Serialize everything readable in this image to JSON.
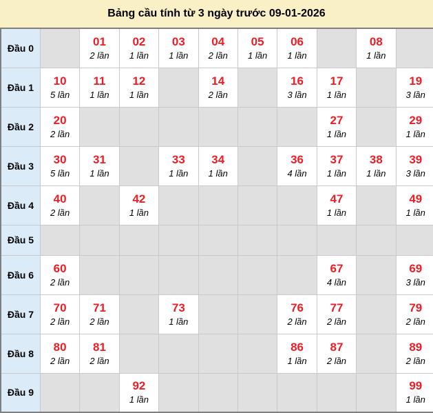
{
  "title": "Bảng cầu tính từ 3 ngày trước 09-01-2026",
  "count_unit": "lần",
  "colors": {
    "title_bg": "#FAF0C6",
    "row_header_bg": "#DCEBF8",
    "empty_cell_bg": "#E0E0E0",
    "filled_cell_bg": "#FFFFFF",
    "number_red": "#EE1C25",
    "grid_line": "#C9C9C9",
    "outer_border": "#7F7F7F",
    "text_dark": "#000000"
  },
  "table": {
    "rows": [
      {
        "label": "Đầu 0",
        "cells": [
          null,
          {
            "num": "01",
            "count": 2
          },
          {
            "num": "02",
            "count": 1
          },
          {
            "num": "03",
            "count": 1
          },
          {
            "num": "04",
            "count": 2
          },
          {
            "num": "05",
            "count": 1
          },
          {
            "num": "06",
            "count": 1
          },
          null,
          {
            "num": "08",
            "count": 1
          },
          null
        ]
      },
      {
        "label": "Đầu 1",
        "cells": [
          {
            "num": "10",
            "count": 5
          },
          {
            "num": "11",
            "count": 1
          },
          {
            "num": "12",
            "count": 1
          },
          null,
          {
            "num": "14",
            "count": 2
          },
          null,
          {
            "num": "16",
            "count": 3
          },
          {
            "num": "17",
            "count": 1
          },
          null,
          {
            "num": "19",
            "count": 3
          }
        ]
      },
      {
        "label": "Đầu 2",
        "cells": [
          {
            "num": "20",
            "count": 2
          },
          null,
          null,
          null,
          null,
          null,
          null,
          {
            "num": "27",
            "count": 1
          },
          null,
          {
            "num": "29",
            "count": 1
          }
        ]
      },
      {
        "label": "Đầu 3",
        "cells": [
          {
            "num": "30",
            "count": 5
          },
          {
            "num": "31",
            "count": 1
          },
          null,
          {
            "num": "33",
            "count": 1
          },
          {
            "num": "34",
            "count": 1
          },
          null,
          {
            "num": "36",
            "count": 4
          },
          {
            "num": "37",
            "count": 1
          },
          {
            "num": "38",
            "count": 1
          },
          {
            "num": "39",
            "count": 3
          }
        ]
      },
      {
        "label": "Đầu 4",
        "cells": [
          {
            "num": "40",
            "count": 2
          },
          null,
          {
            "num": "42",
            "count": 1
          },
          null,
          null,
          null,
          null,
          {
            "num": "47",
            "count": 1
          },
          null,
          {
            "num": "49",
            "count": 1
          }
        ]
      },
      {
        "label": "Đầu 5",
        "cells": [
          null,
          null,
          null,
          null,
          null,
          null,
          null,
          null,
          null,
          null
        ]
      },
      {
        "label": "Đầu 6",
        "cells": [
          {
            "num": "60",
            "count": 2
          },
          null,
          null,
          null,
          null,
          null,
          null,
          {
            "num": "67",
            "count": 4
          },
          null,
          {
            "num": "69",
            "count": 3
          }
        ]
      },
      {
        "label": "Đầu 7",
        "cells": [
          {
            "num": "70",
            "count": 2
          },
          {
            "num": "71",
            "count": 2
          },
          null,
          {
            "num": "73",
            "count": 1
          },
          null,
          null,
          {
            "num": "76",
            "count": 2
          },
          {
            "num": "77",
            "count": 2
          },
          null,
          {
            "num": "79",
            "count": 2
          }
        ]
      },
      {
        "label": "Đầu 8",
        "cells": [
          {
            "num": "80",
            "count": 2
          },
          {
            "num": "81",
            "count": 2
          },
          null,
          null,
          null,
          null,
          {
            "num": "86",
            "count": 1
          },
          {
            "num": "87",
            "count": 2
          },
          null,
          {
            "num": "89",
            "count": 2
          }
        ]
      },
      {
        "label": "Đầu 9",
        "cells": [
          null,
          null,
          {
            "num": "92",
            "count": 1
          },
          null,
          null,
          null,
          null,
          null,
          null,
          {
            "num": "99",
            "count": 1
          }
        ]
      }
    ]
  }
}
